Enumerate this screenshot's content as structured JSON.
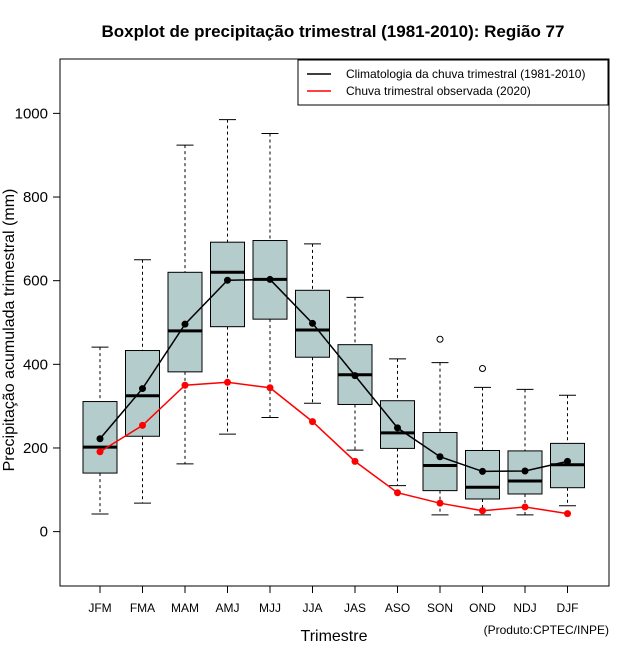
{
  "chart_data": {
    "type": "boxplot",
    "title": "Boxplot de precipitação trimestral (1981-2010): Região 77",
    "xlabel": "Trimestre",
    "ylabel": "Precipitação acumulada trimestral (mm)",
    "ylim": [
      -130,
      1130
    ],
    "yticks": [
      0,
      200,
      400,
      600,
      800,
      1000
    ],
    "credit": "(Produto:CPTEC/INPE)",
    "categories": [
      "JFM",
      "FMA",
      "MAM",
      "AMJ",
      "MJJ",
      "JJA",
      "JAS",
      "ASO",
      "SON",
      "OND",
      "NDJ",
      "DJF"
    ],
    "boxes": [
      {
        "whisker_low": 42,
        "q1": 140,
        "median": 202,
        "q3": 311,
        "whisker_high": 441,
        "outliers": []
      },
      {
        "whisker_low": 68,
        "q1": 228,
        "median": 325,
        "q3": 433,
        "whisker_high": 650,
        "outliers": []
      },
      {
        "whisker_low": 162,
        "q1": 382,
        "median": 480,
        "q3": 620,
        "whisker_high": 924,
        "outliers": []
      },
      {
        "whisker_low": 233,
        "q1": 490,
        "median": 620,
        "q3": 692,
        "whisker_high": 985,
        "outliers": []
      },
      {
        "whisker_low": 273,
        "q1": 508,
        "median": 603,
        "q3": 696,
        "whisker_high": 952,
        "outliers": []
      },
      {
        "whisker_low": 307,
        "q1": 417,
        "median": 482,
        "q3": 577,
        "whisker_high": 688,
        "outliers": []
      },
      {
        "whisker_low": 195,
        "q1": 304,
        "median": 375,
        "q3": 447,
        "whisker_high": 560,
        "outliers": []
      },
      {
        "whisker_low": 110,
        "q1": 199,
        "median": 236,
        "q3": 313,
        "whisker_high": 413,
        "outliers": []
      },
      {
        "whisker_low": 40,
        "q1": 98,
        "median": 158,
        "q3": 237,
        "whisker_high": 404,
        "outliers": [
          460
        ]
      },
      {
        "whisker_low": 40,
        "q1": 78,
        "median": 106,
        "q3": 194,
        "whisker_high": 345,
        "outliers": [
          390
        ]
      },
      {
        "whisker_low": 40,
        "q1": 90,
        "median": 121,
        "q3": 193,
        "whisker_high": 340,
        "outliers": []
      },
      {
        "whisker_low": 62,
        "q1": 105,
        "median": 160,
        "q3": 211,
        "whisker_high": 326,
        "outliers": []
      }
    ],
    "series": [
      {
        "name": "Climatologia da chuva trimestral (1981-2010)",
        "color": "#000000",
        "values": [
          222,
          342,
          496,
          601,
          603,
          498,
          373,
          248,
          179,
          144,
          145,
          168
        ]
      },
      {
        "name": "Chuva trimestral observada (2020)",
        "color": "#ff0000",
        "values": [
          191,
          254,
          350,
          357,
          344,
          263,
          168,
          93,
          68,
          50,
          59,
          43
        ]
      }
    ],
    "legend_position": "top-right",
    "box_fill": "#b4cccc"
  }
}
